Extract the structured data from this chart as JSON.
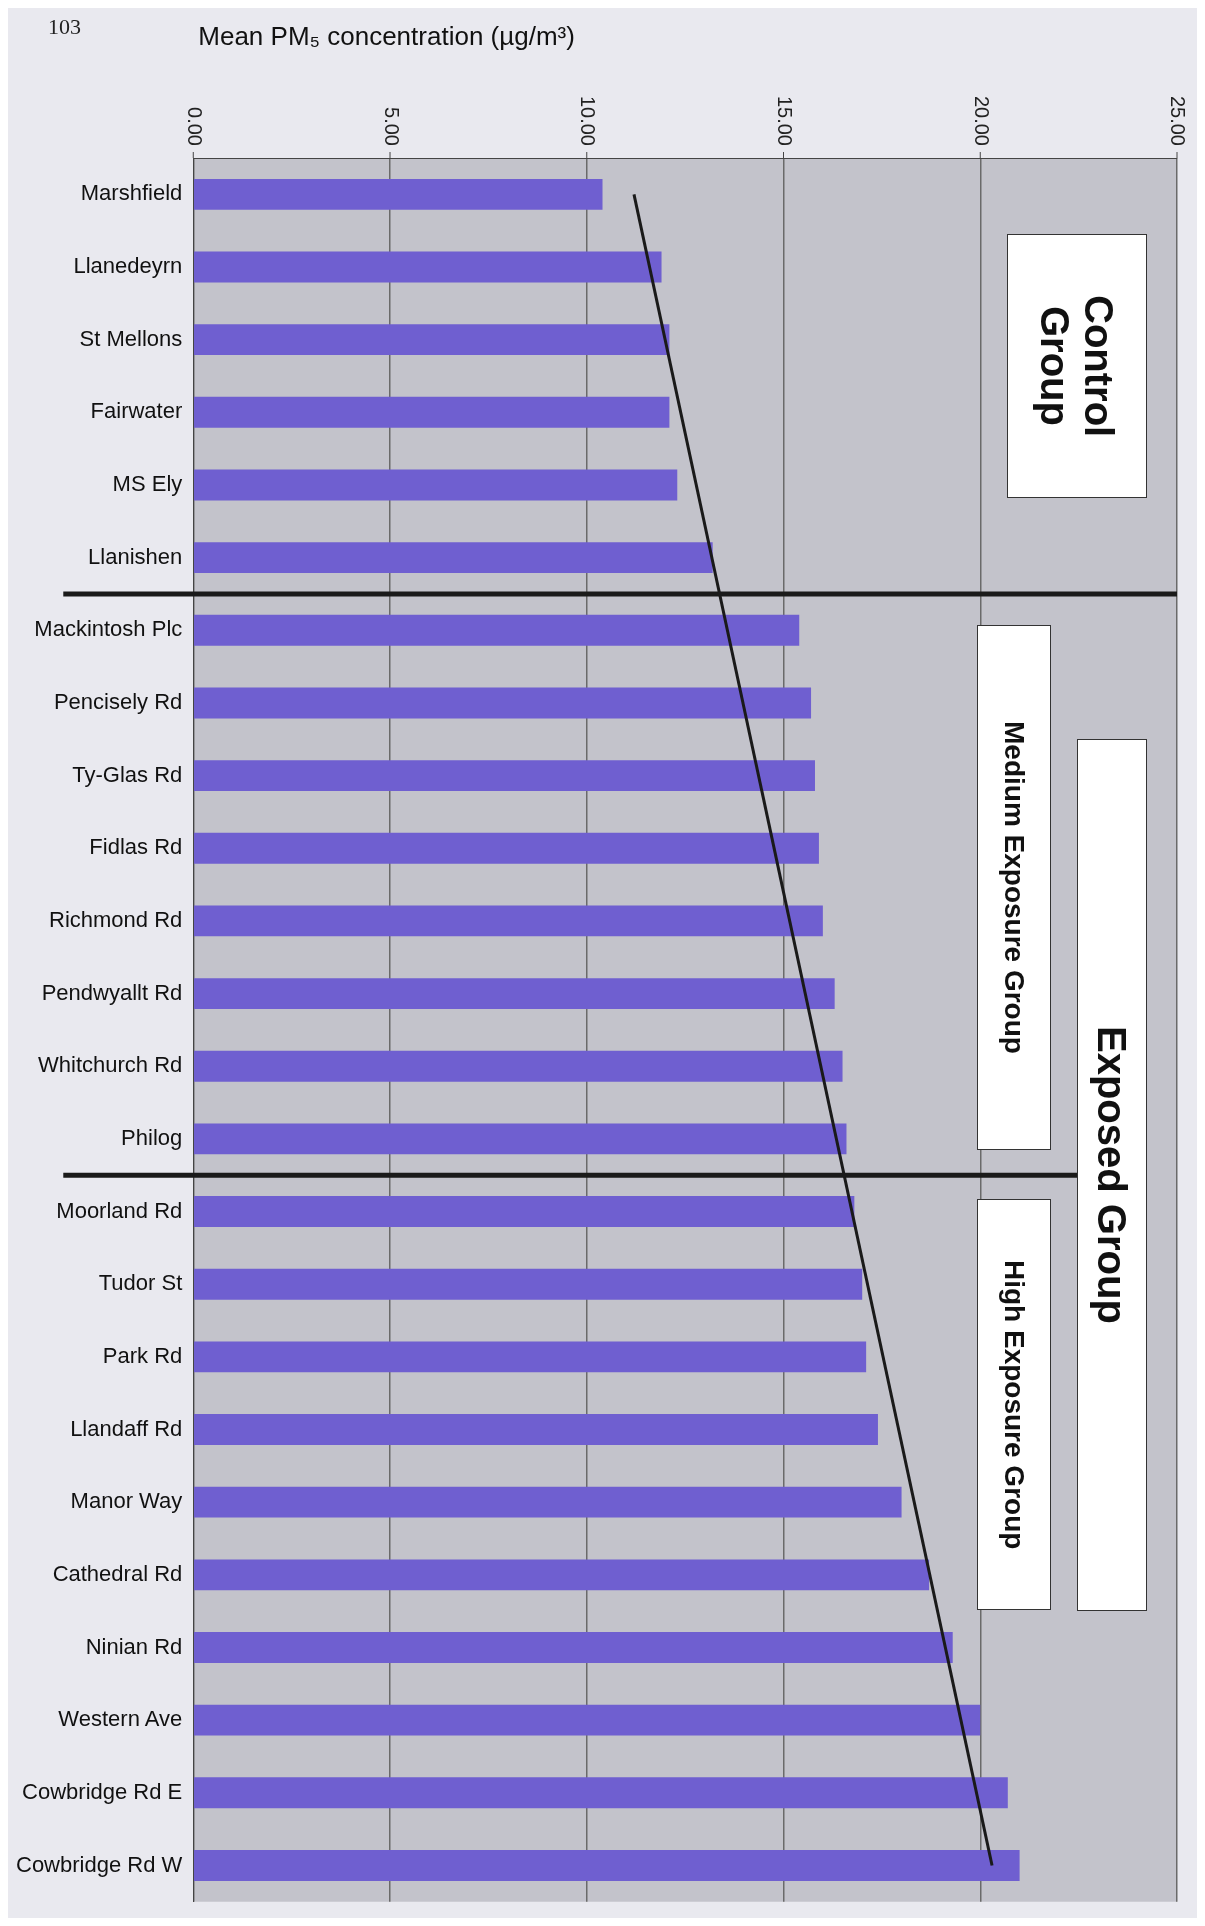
{
  "chart_data": {
    "type": "bar",
    "orientation": "horizontal",
    "xlabel": "Mean PM₅ concentration (µg/m³)",
    "categories": [
      "Marshfield",
      "Llanedeyrn",
      "St Mellons",
      "Fairwater",
      "MS Ely",
      "Llanishen",
      "Mackintosh Plc",
      "Pencisely Rd",
      "Ty-Glas Rd",
      "Fidlas Rd",
      "Richmond Rd",
      "Pendwyallt Rd",
      "Whitchurch Rd",
      "Philog",
      "Moorland Rd",
      "Tudor St",
      "Park Rd",
      "Llandaff Rd",
      "Manor Way",
      "Cathedral Rd",
      "Ninian Rd",
      "Western Ave",
      "Cowbridge Rd E",
      "Cowbridge Rd W"
    ],
    "series": [
      {
        "color": "#6f5fd0",
        "values": [
          10.4,
          11.9,
          12.1,
          12.1,
          12.3,
          13.2,
          15.4,
          15.7,
          15.8,
          15.9,
          16.0,
          16.3,
          16.5,
          16.6,
          16.8,
          17.0,
          17.1,
          17.4,
          18.0,
          18.7,
          19.3,
          20.0,
          20.7,
          21.0
        ]
      },
      {
        "type": "line",
        "color": "#1a1a1a",
        "values": [
          11.2,
          null,
          null,
          null,
          null,
          null,
          null,
          null,
          null,
          null,
          null,
          null,
          null,
          null,
          null,
          null,
          null,
          null,
          null,
          null,
          null,
          null,
          null,
          20.3
        ]
      }
    ],
    "xlim": [
      0,
      25
    ],
    "xticks": [
      {
        "value": 0,
        "label": "0.00"
      },
      {
        "value": 5,
        "label": "5.00"
      },
      {
        "value": 10,
        "label": "10.00"
      },
      {
        "value": 15,
        "label": "15.00"
      },
      {
        "value": 20,
        "label": "20.00"
      },
      {
        "value": 25,
        "label": "25.00"
      }
    ],
    "grid": "x",
    "legend": false,
    "annotations": [
      "103",
      "Control Group",
      "Exposed Group",
      "Medium Exposure Group",
      "High Exposure Group"
    ]
  }
}
